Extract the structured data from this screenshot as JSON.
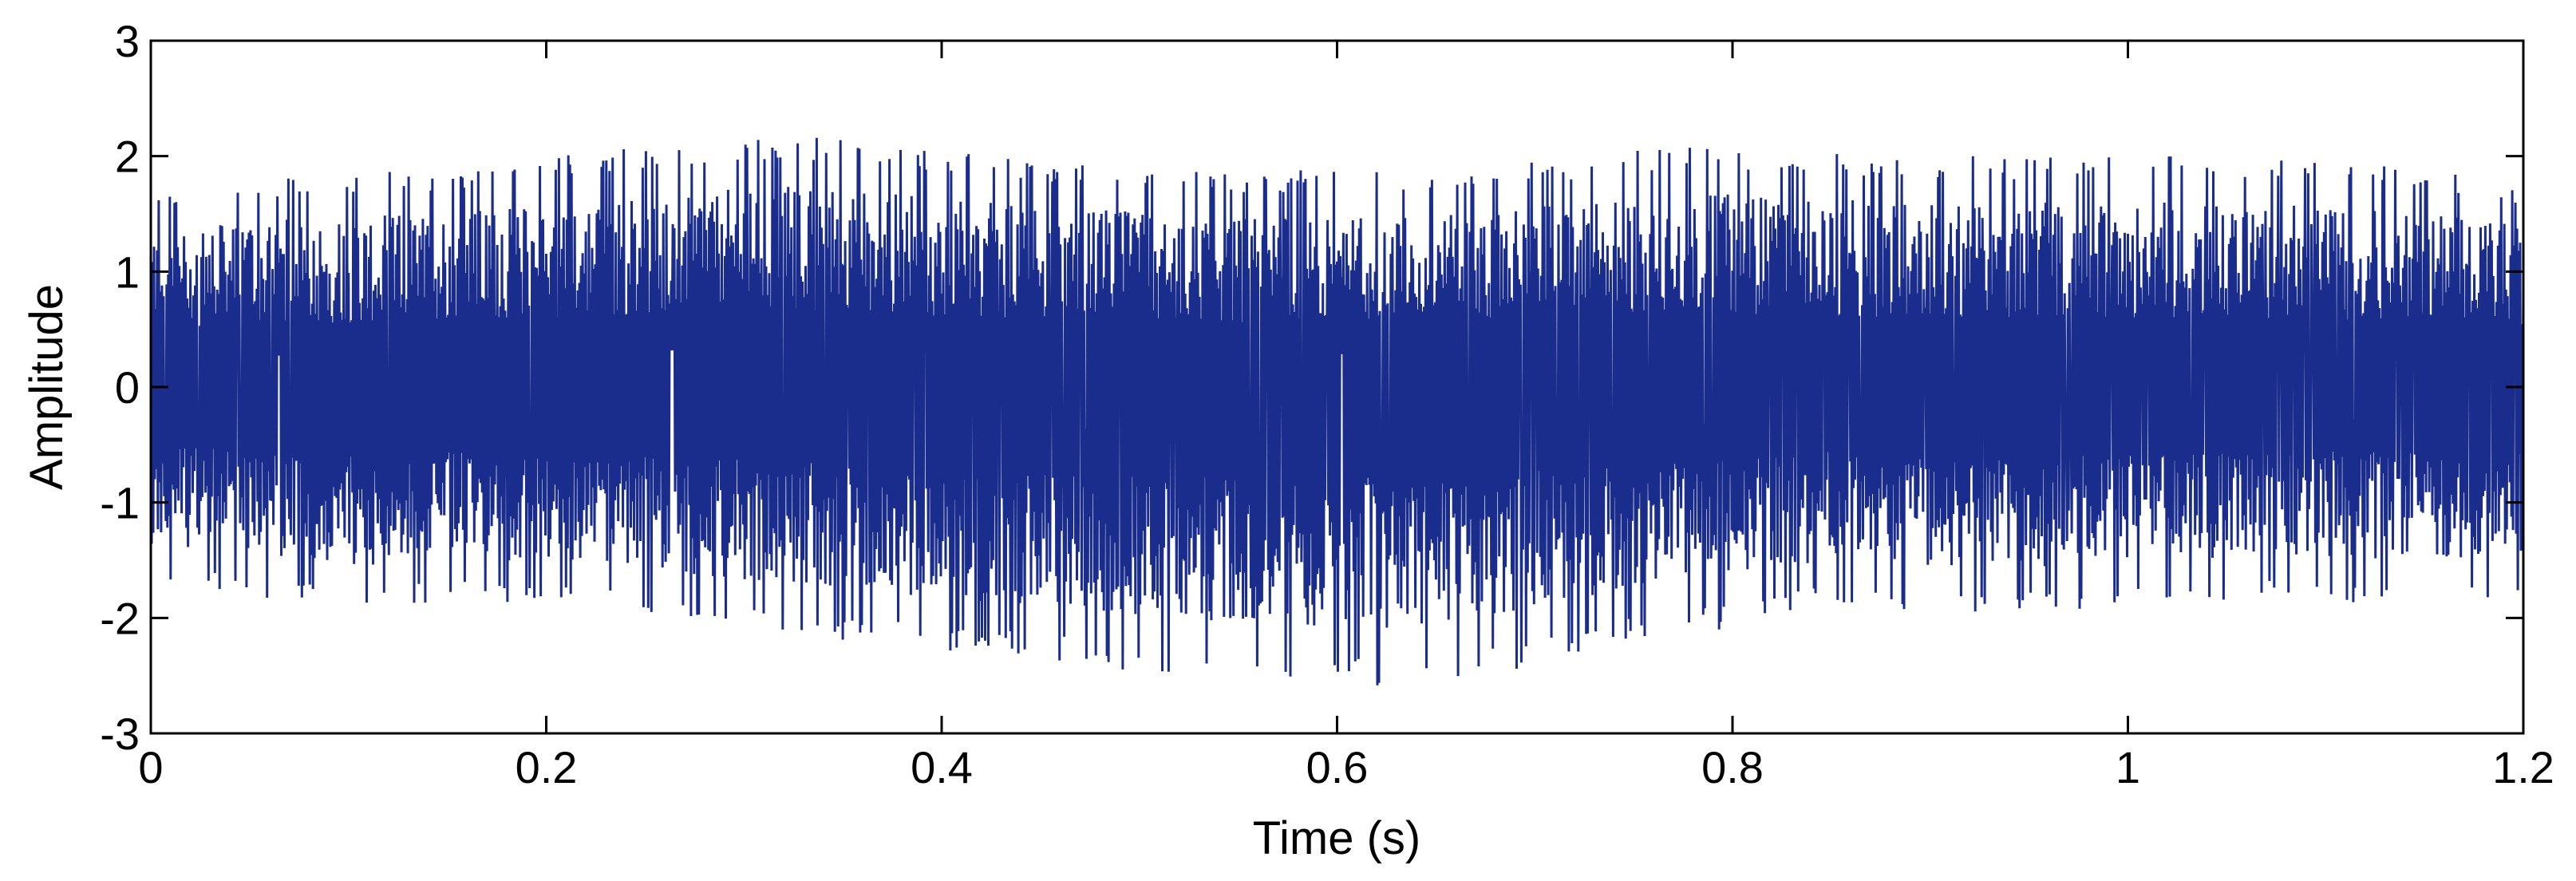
{
  "chart_data": {
    "type": "line",
    "title": "",
    "xlabel": "Time (s)",
    "ylabel": "Amplitude",
    "xlim": [
      0,
      1.2
    ],
    "ylim": [
      -3,
      3
    ],
    "xticks": [
      0,
      0.2,
      0.4,
      0.6,
      0.8,
      1.0,
      1.2
    ],
    "xtick_labels": [
      "0",
      "0.2",
      "0.4",
      "0.6",
      "0.8",
      "1",
      "1.2"
    ],
    "yticks": [
      3,
      2,
      1,
      0,
      -1,
      -2,
      -3
    ],
    "ytick_labels": [
      "3",
      "2",
      "1",
      "0",
      "-1",
      "-2",
      "-3"
    ],
    "grid": false,
    "legend": "none",
    "series_color": "#1a2d8c",
    "series": [
      {
        "sample_interval_s": 0.0004,
        "envelope": {
          "t": [
            0,
            0.05,
            0.1,
            0.15,
            0.2,
            0.25,
            0.3,
            0.35,
            0.4,
            0.45,
            0.5,
            0.55,
            0.6,
            0.65,
            0.7,
            0.75,
            0.8,
            0.85,
            0.9,
            0.95,
            1.0,
            1.05,
            1.1,
            1.15,
            1.2
          ],
          "upper": [
            1.7,
            1.8,
            1.85,
            1.9,
            2.0,
            2.1,
            2.15,
            2.2,
            2.05,
            1.95,
            1.9,
            1.85,
            1.9,
            1.85,
            1.95,
            2.05,
            2.1,
            2.05,
            2.0,
            2.0,
            2.0,
            2.0,
            1.95,
            1.9,
            1.75
          ],
          "lower": [
            -1.7,
            -1.8,
            -1.95,
            -1.85,
            -1.9,
            -1.95,
            -2.1,
            -2.2,
            -2.3,
            -2.35,
            -2.5,
            -2.55,
            -2.6,
            -2.65,
            -2.4,
            -2.2,
            -2.1,
            -1.85,
            -2.0,
            -1.95,
            -1.9,
            -1.85,
            -1.85,
            -1.9,
            -1.85
          ]
        }
      }
    ]
  }
}
